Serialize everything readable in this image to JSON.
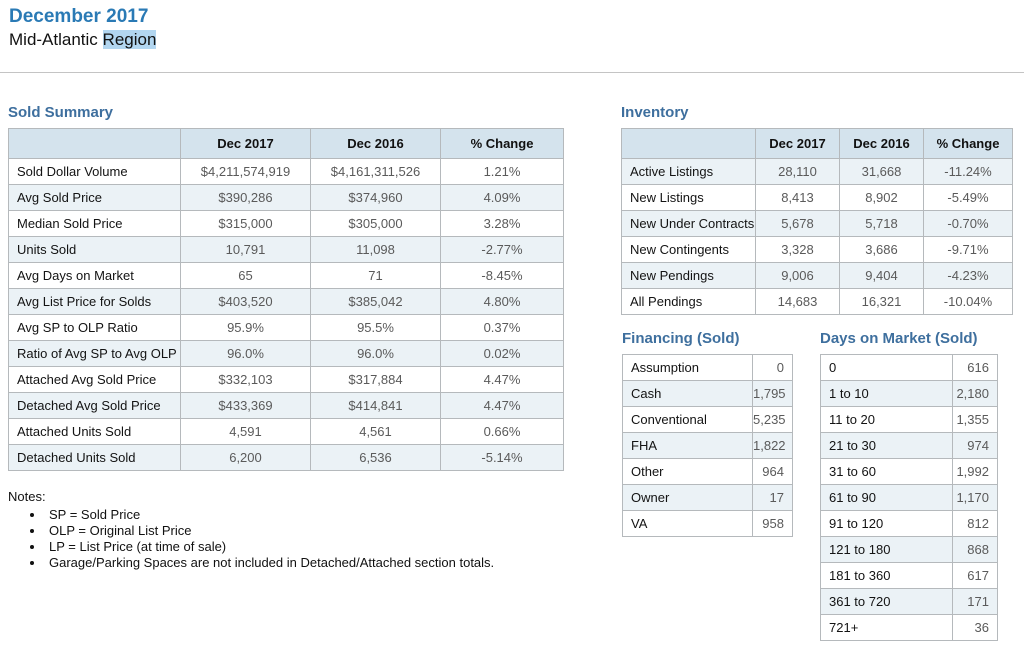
{
  "header": {
    "title": "December 2017",
    "subtitle_prefix": "Mid-Atlantic",
    "subtitle_highlight": "Region"
  },
  "sold_summary": {
    "heading": "Sold Summary",
    "columns": [
      "",
      "Dec 2017",
      "Dec 2016",
      "% Change"
    ],
    "shade": "odd",
    "rows": [
      [
        "Sold Dollar Volume",
        "$4,211,574,919",
        "$4,161,311,526",
        "1.21%"
      ],
      [
        "Avg Sold Price",
        "$390,286",
        "$374,960",
        "4.09%"
      ],
      [
        "Median Sold Price",
        "$315,000",
        "$305,000",
        "3.28%"
      ],
      [
        "Units Sold",
        "10,791",
        "11,098",
        "-2.77%"
      ],
      [
        "Avg Days on Market",
        "65",
        "71",
        "-8.45%"
      ],
      [
        "Avg List Price for Solds",
        "$403,520",
        "$385,042",
        "4.80%"
      ],
      [
        "Avg SP to OLP Ratio",
        "95.9%",
        "95.5%",
        "0.37%"
      ],
      [
        "Ratio of Avg SP to Avg OLP",
        "96.0%",
        "96.0%",
        "0.02%"
      ],
      [
        "Attached Avg Sold Price",
        "$332,103",
        "$317,884",
        "4.47%"
      ],
      [
        "Detached Avg Sold Price",
        "$433,369",
        "$414,841",
        "4.47%"
      ],
      [
        "Attached Units Sold",
        "4,591",
        "4,561",
        "0.66%"
      ],
      [
        "Detached Units Sold",
        "6,200",
        "6,536",
        "-5.14%"
      ]
    ]
  },
  "inventory": {
    "heading": "Inventory",
    "columns": [
      "",
      "Dec 2017",
      "Dec 2016",
      "% Change"
    ],
    "shade": "even",
    "rows": [
      [
        "Active Listings",
        "28,110",
        "31,668",
        "-11.24%"
      ],
      [
        "New Listings",
        "8,413",
        "8,902",
        "-5.49%"
      ],
      [
        "New Under Contracts",
        "5,678",
        "5,718",
        "-0.70%"
      ],
      [
        "New Contingents",
        "3,328",
        "3,686",
        "-9.71%"
      ],
      [
        "New Pendings",
        "9,006",
        "9,404",
        "-4.23%"
      ],
      [
        "All Pendings",
        "14,683",
        "16,321",
        "-10.04%"
      ]
    ]
  },
  "financing": {
    "heading": "Financing (Sold)",
    "shade": "odd",
    "rows": [
      [
        "Assumption",
        "0"
      ],
      [
        "Cash",
        "1,795"
      ],
      [
        "Conventional",
        "5,235"
      ],
      [
        "FHA",
        "1,822"
      ],
      [
        "Other",
        "964"
      ],
      [
        "Owner",
        "17"
      ],
      [
        "VA",
        "958"
      ]
    ]
  },
  "days_on_market": {
    "heading": "Days on Market (Sold)",
    "shade": "odd",
    "rows": [
      [
        "0",
        "616"
      ],
      [
        "1 to 10",
        "2,180"
      ],
      [
        "11 to 20",
        "1,355"
      ],
      [
        "21 to 30",
        "974"
      ],
      [
        "31 to 60",
        "1,992"
      ],
      [
        "61 to 90",
        "1,170"
      ],
      [
        "91 to 120",
        "812"
      ],
      [
        "121 to 180",
        "868"
      ],
      [
        "181 to 360",
        "617"
      ],
      [
        "361 to 720",
        "171"
      ],
      [
        "721+",
        "36"
      ]
    ]
  },
  "notes": {
    "title": "Notes:",
    "items": [
      "SP = Sold Price",
      "OLP = Original List Price",
      "LP = List Price (at time of sale)",
      "Garage/Parking Spaces are not included in Detached/Attached section totals."
    ]
  },
  "colors": {
    "title_blue": "#2a7ab5",
    "section_heading_blue": "#3e6f9e",
    "selection_highlight": "#b2d6f0",
    "table_header_bg": "#d4e3ed",
    "shaded_row_bg": "#ebf2f6",
    "table_border": "#b5b9bc"
  }
}
